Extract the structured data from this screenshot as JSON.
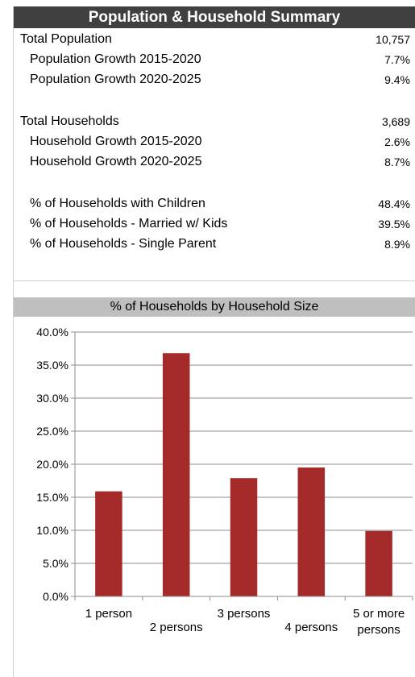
{
  "summary": {
    "title": "Population & Household Summary",
    "rows": [
      {
        "label": "Total Population",
        "value": "10,757"
      },
      {
        "label": "Population Growth 2015-2020",
        "value": "7.7%"
      },
      {
        "label": "Population Growth 2020-2025",
        "value": "9.4%"
      },
      {
        "label": "Total Households",
        "value": "3,689"
      },
      {
        "label": "Household Growth 2015-2020",
        "value": "2.6%"
      },
      {
        "label": "Household Growth 2020-2025",
        "value": "8.7%"
      },
      {
        "label": "% of Households with Children",
        "value": "48.4%"
      },
      {
        "label": "% of Households - Married w/ Kids",
        "value": "39.5%"
      },
      {
        "label": "% of Households - Single Parent",
        "value": "8.9%"
      }
    ]
  },
  "colors": {
    "bar": "#a52a2a",
    "title_bg": "#404040",
    "chart_head_bg": "#bfbfbf"
  },
  "chart_data": {
    "type": "bar",
    "title": "% of Households by Household Size",
    "categories": [
      "1 person",
      "2 persons",
      "3 persons",
      "4 persons",
      "5 or more persons"
    ],
    "category_lines": [
      [
        "1 person"
      ],
      [
        "2 persons"
      ],
      [
        "3 persons"
      ],
      [
        "4 persons"
      ],
      [
        "5 or more",
        "persons"
      ]
    ],
    "values": [
      15.9,
      36.8,
      17.9,
      19.5,
      9.9
    ],
    "ylim": [
      0,
      40
    ],
    "yticks": [
      "0.0%",
      "5.0%",
      "10.0%",
      "15.0%",
      "20.0%",
      "25.0%",
      "30.0%",
      "35.0%",
      "40.0%"
    ],
    "grid": true,
    "legend": "none"
  }
}
